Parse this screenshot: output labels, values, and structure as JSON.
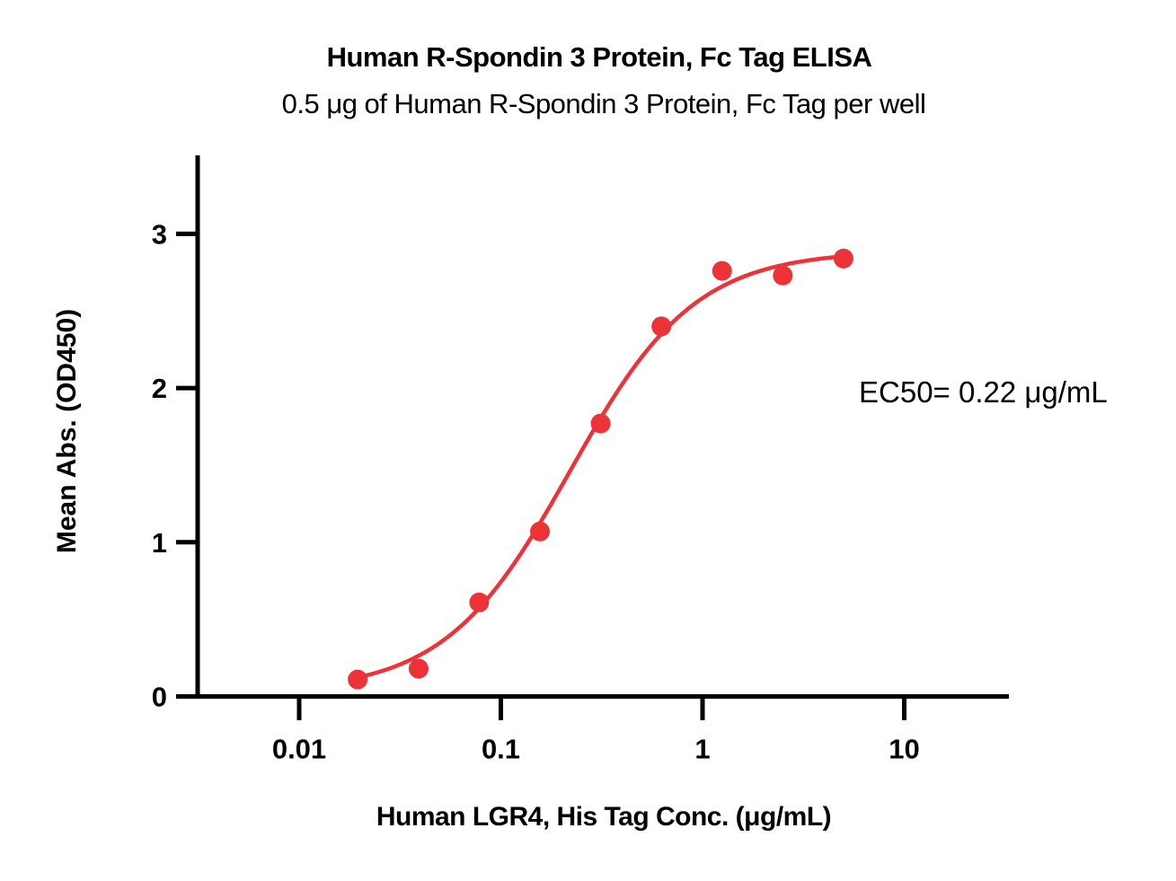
{
  "chart_data": {
    "type": "scatter",
    "title": "Human R-Spondin 3 Protein, Fc Tag ELISA",
    "subtitle": "0.5 μg of Human R-Spondin 3 Protein, Fc Tag per well",
    "xlabel": "Human LGR4, His Tag Conc. (μg/mL)",
    "ylabel": "Mean Abs. (OD450)",
    "x_scale": "log10",
    "x_ticks": [
      0.01,
      0.1,
      1,
      10
    ],
    "x_tick_labels": [
      "0.01",
      "0.1",
      "1",
      "10"
    ],
    "y_ticks": [
      0,
      1,
      2,
      3
    ],
    "y_tick_labels": [
      "0",
      "1",
      "2",
      "3"
    ],
    "ylim": [
      0,
      3.5
    ],
    "xlim": [
      0.0032,
      33
    ],
    "grid": false,
    "legend": "none",
    "points": {
      "x": [
        0.0195,
        0.0391,
        0.0781,
        0.1563,
        0.3125,
        0.625,
        1.25,
        2.5,
        5
      ],
      "y": [
        0.11,
        0.18,
        0.61,
        1.07,
        1.77,
        2.4,
        2.76,
        2.73,
        2.84
      ]
    },
    "fit_curve": {
      "model": "4PL",
      "bottom": 0.03,
      "top": 2.89,
      "ec50": 0.22,
      "hill": 1.4,
      "x_range": [
        0.0195,
        5
      ]
    },
    "annotation": "EC50= 0.22 μg/mL",
    "colors": {
      "series": "#EC3338",
      "axis": "#000000",
      "text": "#000000"
    }
  }
}
